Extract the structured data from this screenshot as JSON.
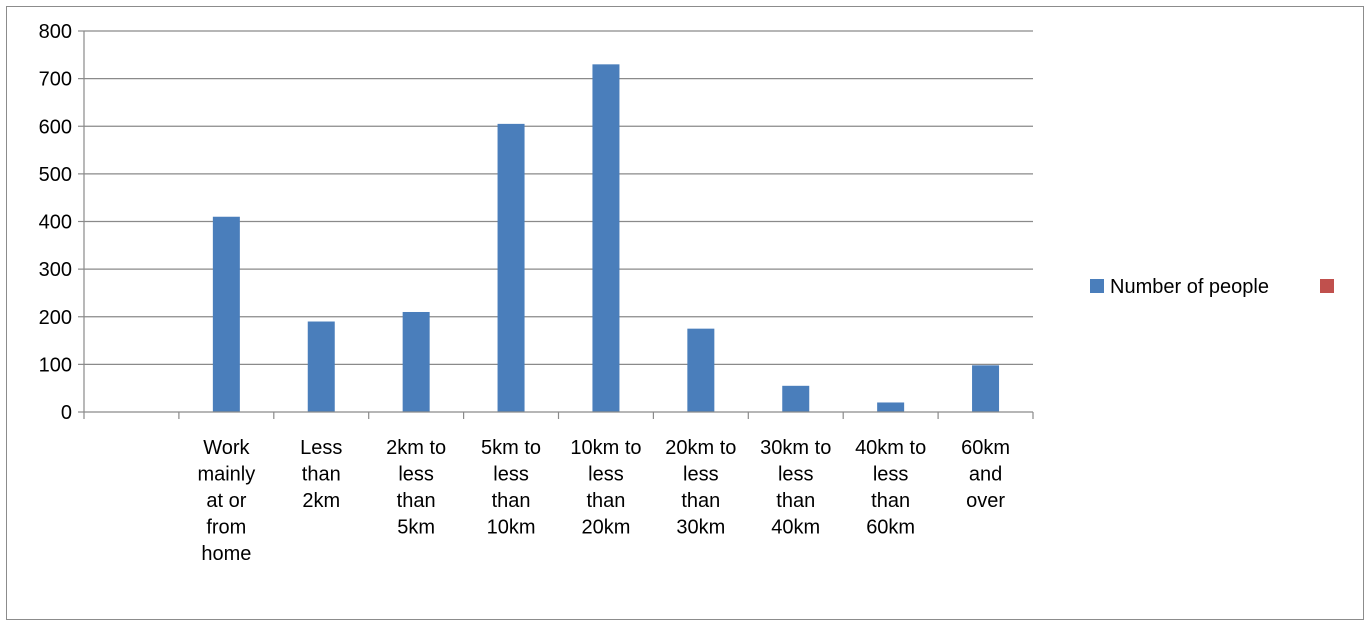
{
  "chart_data": {
    "type": "bar",
    "categories": [
      "",
      "Work mainly at or from home",
      "Less than 2km",
      "2km to less than 5km",
      "5km to less than 10km",
      "10km to less than 20km",
      "20km to less than 30km",
      "30km to less than 40km",
      "40km to less than 60km",
      "60km and over"
    ],
    "category_label_lines": [
      [],
      [
        "Work",
        "mainly",
        "at or",
        "from",
        "home"
      ],
      [
        "Less",
        "than",
        "2km"
      ],
      [
        "2km to",
        "less",
        "than",
        "5km"
      ],
      [
        "5km to",
        "less",
        "than",
        "10km"
      ],
      [
        "10km to",
        "less",
        "than",
        "20km"
      ],
      [
        "20km to",
        "less",
        "than",
        "30km"
      ],
      [
        "30km to",
        "less",
        "than",
        "40km"
      ],
      [
        "40km to",
        "less",
        "than",
        "60km"
      ],
      [
        "60km",
        "and",
        "over"
      ]
    ],
    "series": [
      {
        "name": "Number of people",
        "color": "#4a7ebb",
        "values": [
          null,
          410,
          190,
          210,
          605,
          730,
          175,
          55,
          20,
          98
        ]
      },
      {
        "name": "",
        "color": "#c0504d",
        "values": [
          null,
          null,
          null,
          null,
          null,
          null,
          null,
          null,
          null,
          null
        ]
      }
    ],
    "title": "",
    "xlabel": "",
    "ylabel": "",
    "ylim": [
      0,
      800
    ],
    "yticks": [
      0,
      100,
      200,
      300,
      400,
      500,
      600,
      700,
      800
    ],
    "grid": true,
    "legend": "right"
  }
}
